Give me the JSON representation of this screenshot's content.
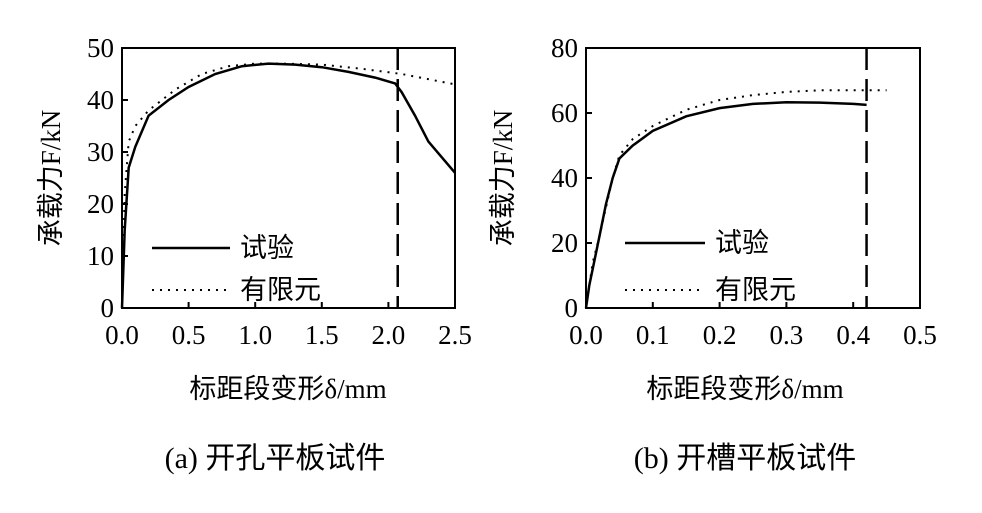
{
  "chart_data": [
    {
      "type": "line",
      "caption": "(a) 开孔平板试件",
      "xlabel": "标距段变形δ/mm",
      "ylabel": "承载力F/kN",
      "xlim": [
        0,
        2.5
      ],
      "ylim": [
        0,
        50
      ],
      "xticks": [
        "0.0",
        "0.5",
        "1.0",
        "1.5",
        "2.0",
        "2.5"
      ],
      "yticks": [
        "0",
        "10",
        "20",
        "30",
        "40",
        "50"
      ],
      "legend_position": "bottom-left",
      "marker_x": 2.07,
      "series": [
        {
          "name": "试验",
          "style": "solid",
          "x": [
            0,
            0.02,
            0.05,
            0.1,
            0.2,
            0.35,
            0.5,
            0.7,
            0.9,
            1.1,
            1.3,
            1.5,
            1.7,
            1.9,
            2.05,
            2.1,
            2.2,
            2.3,
            2.4,
            2.5
          ],
          "y": [
            0,
            15,
            27,
            31,
            37,
            40,
            42.5,
            45,
            46.5,
            47,
            46.8,
            46.3,
            45.4,
            44.3,
            43.2,
            41.5,
            37,
            32,
            29,
            26
          ]
        },
        {
          "name": "有限元",
          "style": "dotted",
          "x": [
            0,
            0.02,
            0.05,
            0.1,
            0.2,
            0.4,
            0.6,
            0.8,
            1.0,
            1.2,
            1.5,
            1.8,
            2.1,
            2.3,
            2.5
          ],
          "y": [
            0,
            22,
            32,
            35,
            38,
            42,
            45,
            46.5,
            47,
            47,
            46.8,
            46,
            45,
            44,
            43
          ]
        }
      ]
    },
    {
      "type": "line",
      "caption": "(b) 开槽平板试件",
      "xlabel": "标距段变形δ/mm",
      "ylabel": "承载力F/kN",
      "xlim": [
        0,
        0.5
      ],
      "ylim": [
        0,
        80
      ],
      "xticks": [
        "0.0",
        "0.1",
        "0.2",
        "0.3",
        "0.4",
        "0.5"
      ],
      "yticks": [
        "0",
        "20",
        "40",
        "60",
        "80"
      ],
      "legend_position": "bottom-left",
      "marker_x": 0.42,
      "series": [
        {
          "name": "试验",
          "style": "solid",
          "x": [
            0,
            0.005,
            0.01,
            0.02,
            0.03,
            0.04,
            0.05,
            0.07,
            0.1,
            0.15,
            0.2,
            0.25,
            0.3,
            0.35,
            0.4,
            0.42
          ],
          "y": [
            0,
            7,
            12,
            22,
            32,
            40,
            46,
            50,
            54.5,
            59,
            61.5,
            62.8,
            63.3,
            63.2,
            62.8,
            62.5
          ]
        },
        {
          "name": "有限元",
          "style": "dotted",
          "x": [
            0,
            0.01,
            0.02,
            0.03,
            0.04,
            0.05,
            0.07,
            0.1,
            0.15,
            0.2,
            0.25,
            0.3,
            0.35,
            0.4,
            0.45
          ],
          "y": [
            0,
            14,
            22,
            31,
            40,
            47,
            52,
            56,
            61,
            64,
            65.5,
            66.5,
            67,
            67,
            67
          ]
        }
      ]
    }
  ]
}
